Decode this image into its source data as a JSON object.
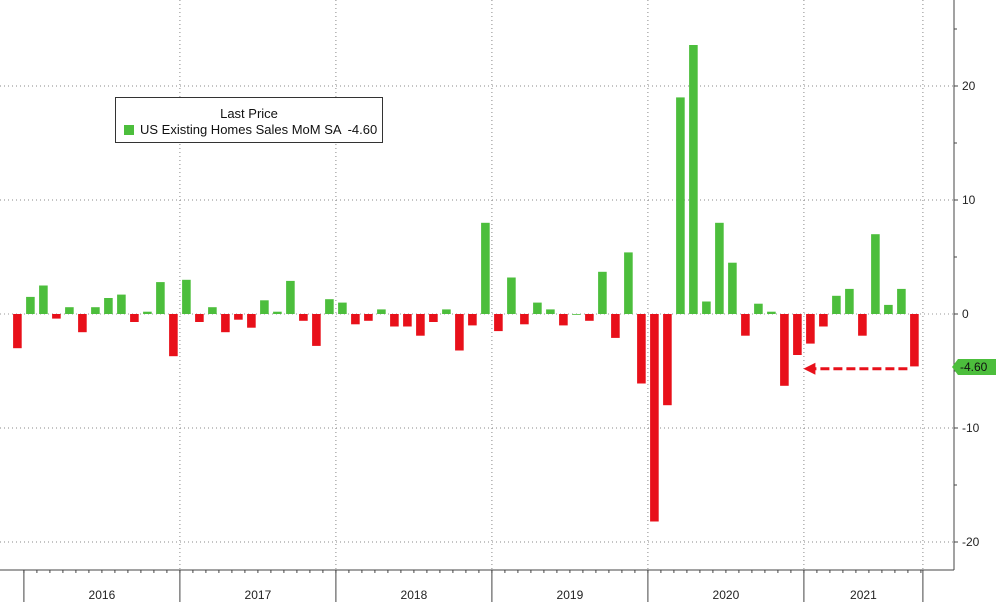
{
  "chart_data": {
    "type": "bar",
    "title": "",
    "legend": {
      "title": "Last Price",
      "series_label": "US Existing Homes Sales MoM SA",
      "last_value": "-4.60",
      "placement": "top-left"
    },
    "last_value_tag": "-4.60",
    "ylim": [
      -23.5,
      27
    ],
    "yticks": [
      20,
      10,
      0,
      -10,
      -20
    ],
    "ytick_labels": [
      "20",
      "10",
      "0",
      "-10",
      "-20"
    ],
    "year_labels": [
      "2016",
      "2017",
      "2018",
      "2019",
      "2020",
      "2021"
    ],
    "grid": true,
    "positive_color": "#4cbe3c",
    "negative_color": "#e8101a",
    "months_start": "2015-12",
    "values": [
      -3.0,
      1.5,
      2.5,
      -0.4,
      0.6,
      -1.6,
      0.6,
      1.4,
      1.7,
      -0.7,
      0.2,
      2.8,
      -3.7,
      3.0,
      -0.7,
      0.6,
      -1.6,
      -0.5,
      -1.2,
      1.2,
      0.2,
      2.9,
      -0.6,
      -2.8,
      1.3,
      1.0,
      -0.9,
      -0.6,
      0.4,
      -1.1,
      -1.1,
      -1.9,
      -0.7,
      0.4,
      -3.2,
      -1.0,
      8.0,
      -1.5,
      3.2,
      -0.9,
      1.0,
      0.4,
      -1.0,
      0.0,
      -0.6,
      3.7,
      -2.1,
      5.4,
      -6.1,
      -18.2,
      -8.0,
      19.0,
      23.6,
      1.1,
      8.0,
      4.5,
      -1.9,
      0.9,
      0.2,
      -6.3,
      -3.6,
      -2.6,
      -1.1,
      1.6,
      2.2,
      -1.9,
      7.0,
      0.8,
      2.2,
      -4.6
    ]
  }
}
